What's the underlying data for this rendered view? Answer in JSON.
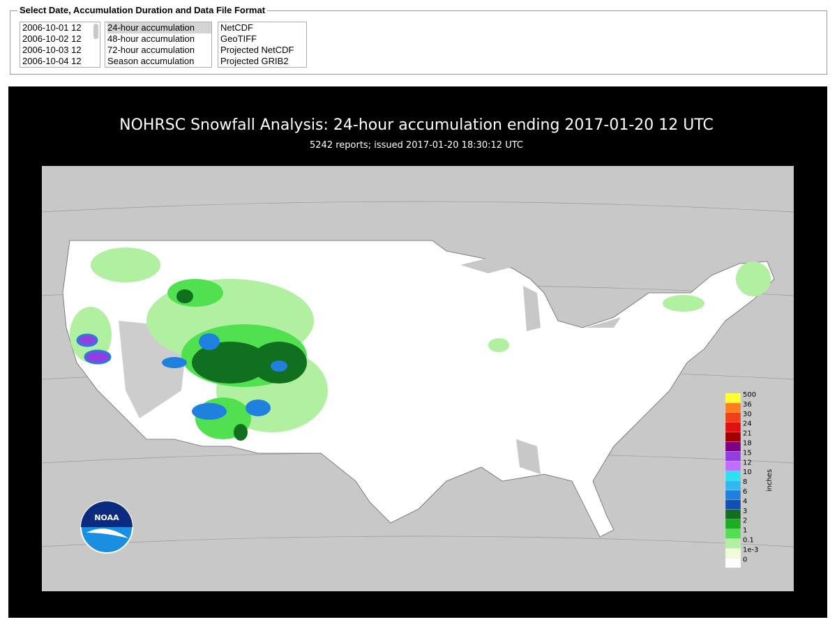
{
  "form": {
    "legend": "Select Date, Accumulation Duration and Data File Format",
    "dates": [
      "2006-10-01 12",
      "2006-10-02 12",
      "2006-10-03 12",
      "2006-10-04 12"
    ],
    "durations": [
      "24-hour accumulation",
      "48-hour accumulation",
      "72-hour accumulation",
      "Season accumulation"
    ],
    "formats": [
      "NetCDF",
      "GeoTIFF",
      "Projected NetCDF",
      "Projected GRIB2"
    ]
  },
  "map": {
    "title": "NOHRSC Snowfall Analysis: 24-hour accumulation ending 2017-01-20 12 UTC",
    "subtitle": "5242 reports; issued 2017-01-20 18:30:12 UTC",
    "logo": "NOAA",
    "legend_unit": "inches",
    "legend_labels": [
      "500",
      "36",
      "30",
      "24",
      "21",
      "18",
      "15",
      "12",
      "10",
      "8",
      "6",
      "4",
      "3",
      "2",
      "1",
      "0.1",
      "1e-3",
      "0"
    ],
    "legend_colors": [
      "#ffff33",
      "#ff7f1e",
      "#f04018",
      "#e01010",
      "#a00000",
      "#800080",
      "#9040e0",
      "#c070ff",
      "#30e0f0",
      "#30b8f0",
      "#2080e0",
      "#1050b0",
      "#107020",
      "#18b020",
      "#50e050",
      "#b0f0a0",
      "#f0fcd8",
      "#ffffff"
    ]
  }
}
